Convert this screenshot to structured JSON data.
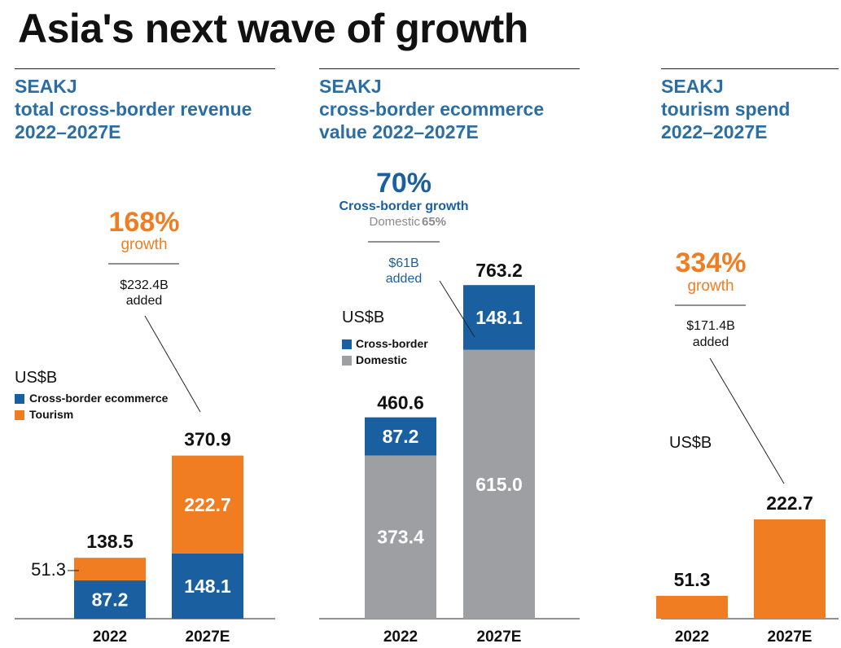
{
  "title": "Asia's next wave of growth",
  "colors": {
    "cross_border": "#1a60a0",
    "tourism": "#f07d22",
    "domestic": "#9e9fa2",
    "title_blue": "#2b6ea6",
    "growth_blue": "#1a60a0"
  },
  "chart_data": [
    {
      "type": "bar",
      "stacked": true,
      "title_lines": [
        "SEAKJ",
        "total cross-border revenue",
        "2022–2027E"
      ],
      "unit": "US$B",
      "categories": [
        "2022",
        "2027E"
      ],
      "series": [
        {
          "name": "Cross-border ecommerce",
          "values": [
            87.2,
            148.1
          ],
          "color_key": "cross_border"
        },
        {
          "name": "Tourism",
          "values": [
            51.3,
            222.7
          ],
          "color_key": "tourism"
        }
      ],
      "totals": [
        "138.5",
        "370.9"
      ],
      "segment_labels": [
        [
          "87.2",
          "51.3"
        ],
        [
          "148.1",
          "222.7"
        ]
      ],
      "growth_pct": "168%",
      "growth_label": "growth",
      "added_value": "$232.4B",
      "added_label": "added",
      "legend_placement": "left"
    },
    {
      "type": "bar",
      "stacked": true,
      "title_lines": [
        "SEAKJ",
        "cross-border ecommerce",
        "value 2022–2027E"
      ],
      "unit": "US$B",
      "categories": [
        "2022",
        "2027E"
      ],
      "series": [
        {
          "name": "Domestic",
          "values": [
            373.4,
            615.0
          ],
          "color_key": "domestic"
        },
        {
          "name": "Cross-border",
          "values": [
            87.2,
            148.1
          ],
          "color_key": "cross_border"
        }
      ],
      "totals": [
        "460.6",
        "763.2"
      ],
      "segment_labels": [
        [
          "373.4",
          "87.2"
        ],
        [
          "615.0",
          "148.1"
        ]
      ],
      "growth_pct": "70%",
      "growth_label": "Cross-border growth",
      "domestic_growth_label": "Domestic",
      "domestic_growth_pct": "65%",
      "added_value": "$61B",
      "added_label": "added",
      "legend_order": [
        "Cross-border",
        "Domestic"
      ],
      "legend_placement": "left"
    },
    {
      "type": "bar",
      "title_lines": [
        "SEAKJ",
        "tourism spend",
        "2022–2027E"
      ],
      "unit": "US$B",
      "categories": [
        "2022",
        "2027E"
      ],
      "series": [
        {
          "values": [
            51.3,
            222.7
          ],
          "color_key": "tourism"
        }
      ],
      "totals": [
        "51.3",
        "222.7"
      ],
      "growth_pct": "334%",
      "growth_label": "growth",
      "added_value": "$171.4B",
      "added_label": "added"
    }
  ]
}
